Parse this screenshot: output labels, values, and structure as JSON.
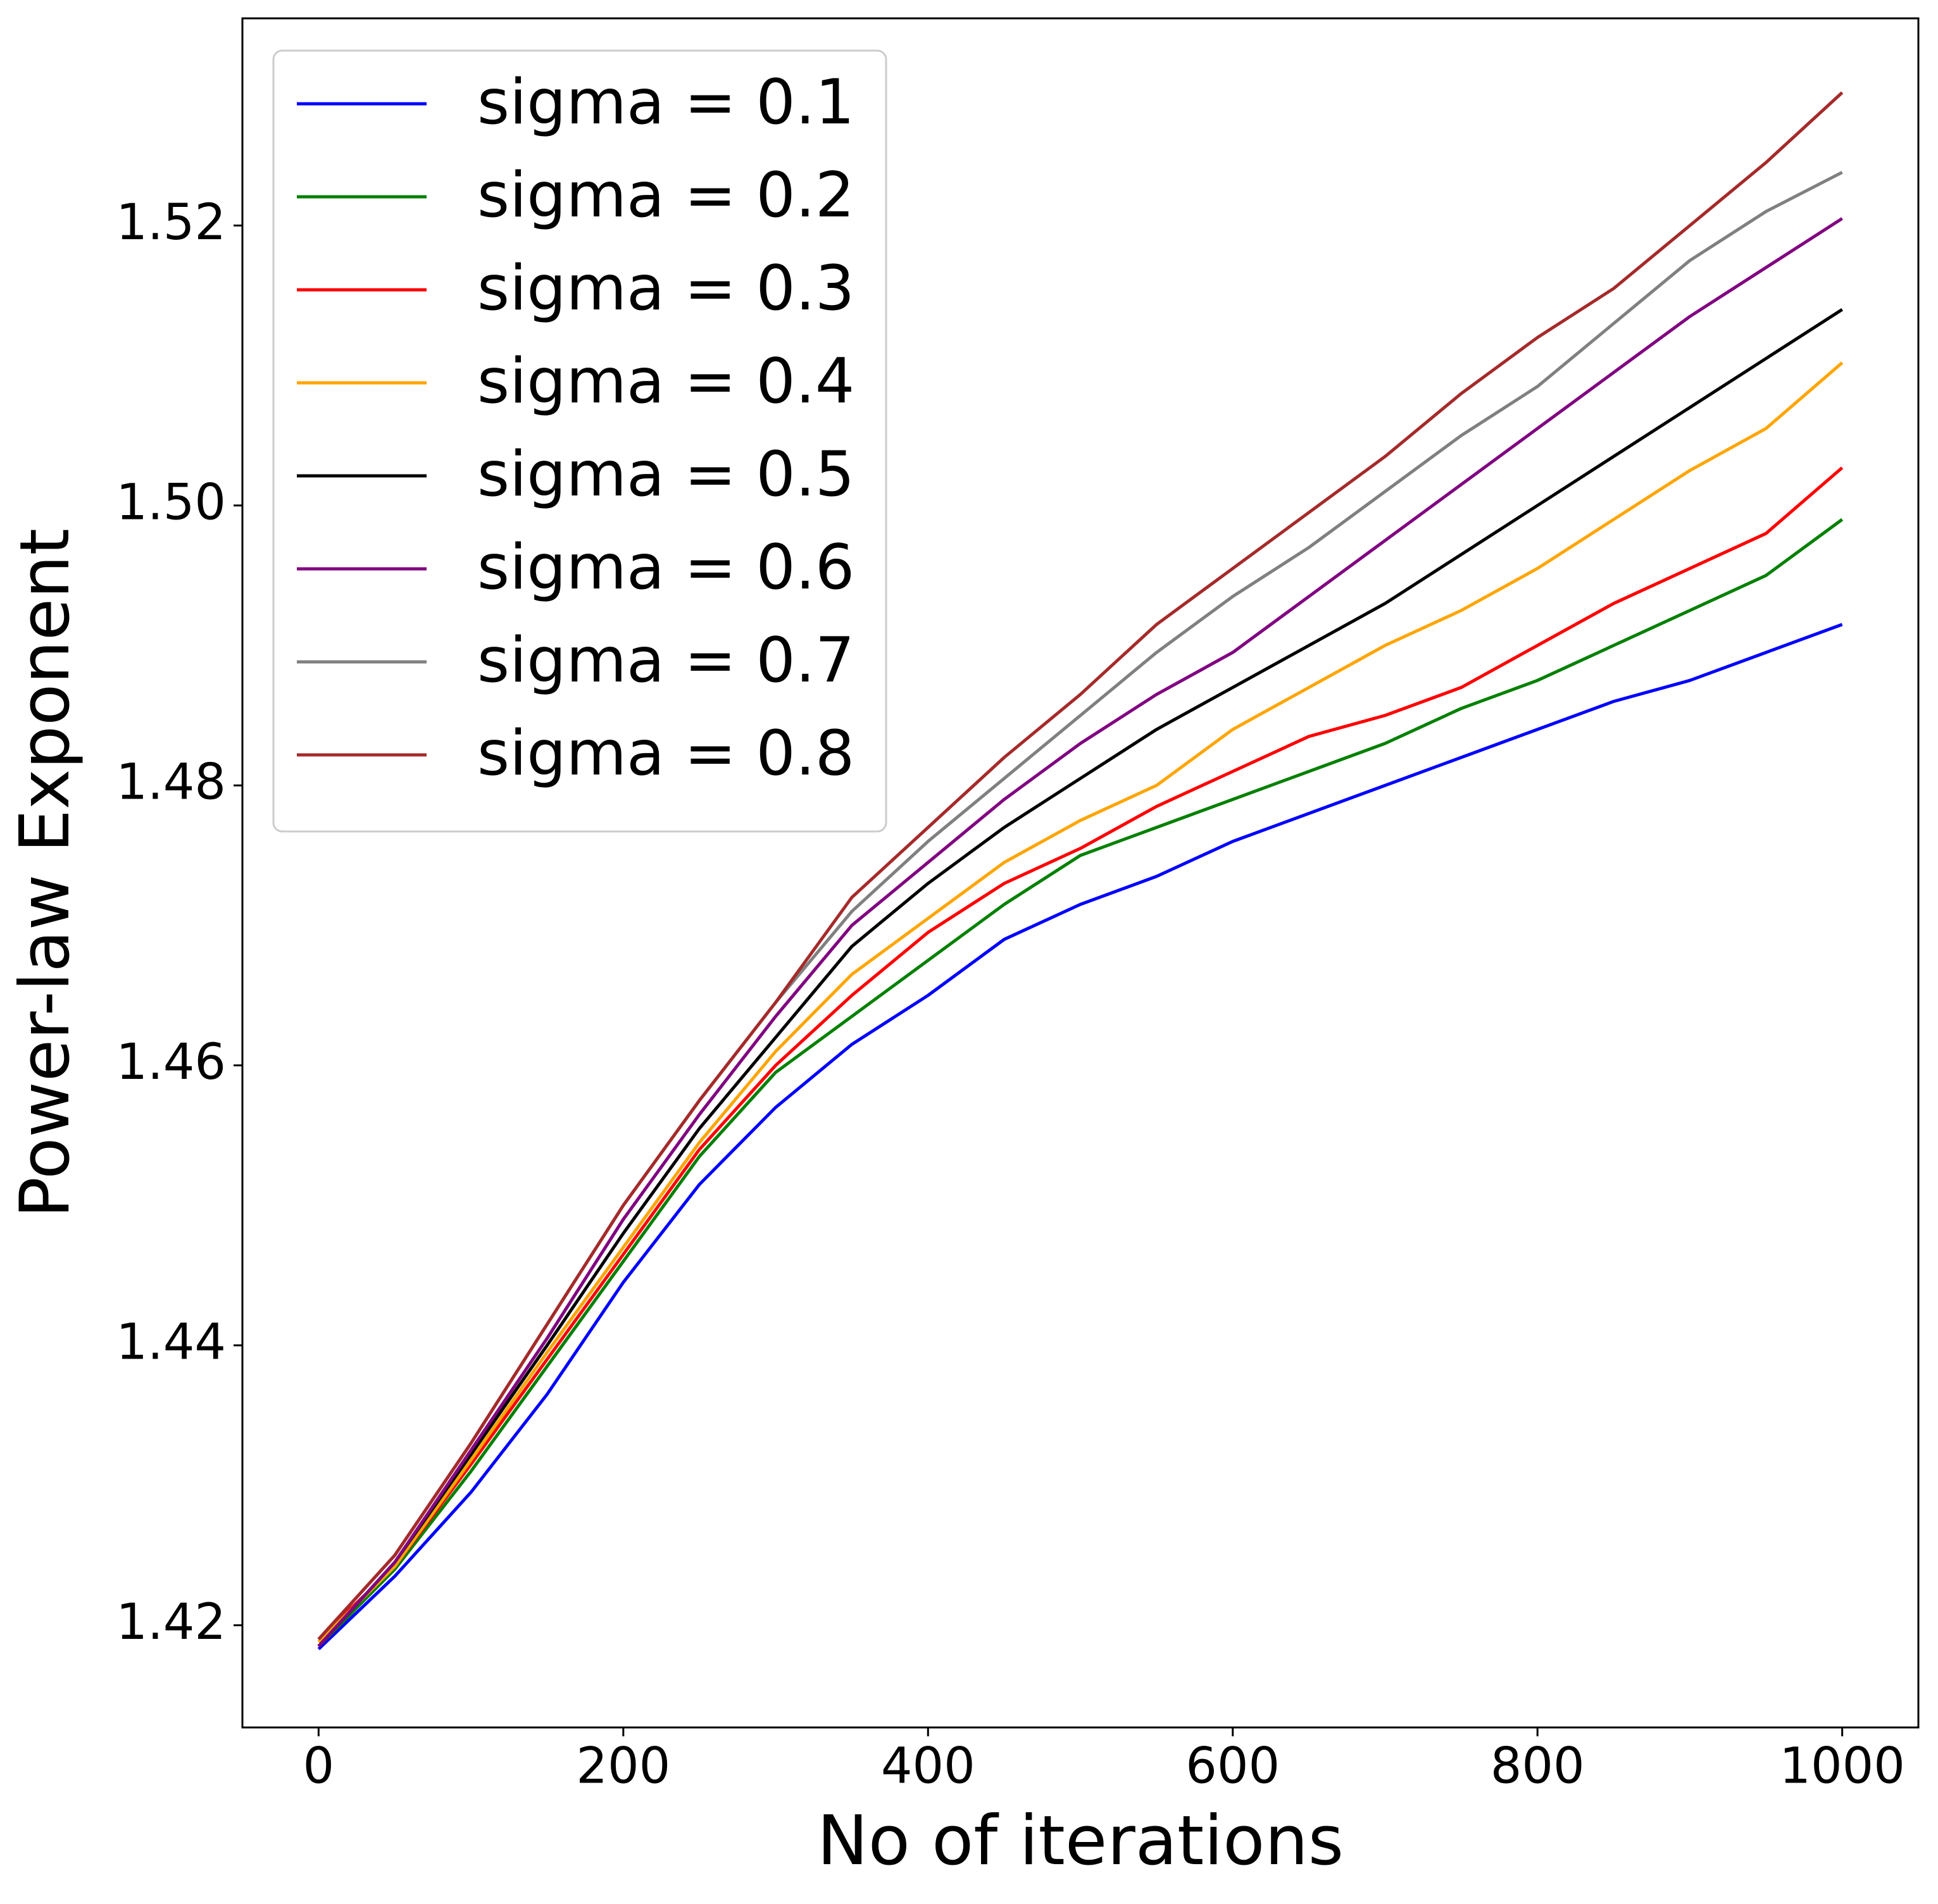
{
  "chart_data": {
    "type": "line",
    "xlabel": "No of iterations",
    "ylabel": "Power-law Exponent",
    "x": [
      0,
      50,
      100,
      150,
      200,
      250,
      300,
      350,
      400,
      450,
      500,
      550,
      600,
      650,
      700,
      750,
      800,
      850,
      900,
      950,
      1000
    ],
    "series": [
      {
        "name": "sigma = 0.1",
        "color": "#0000ff",
        "values": [
          1.4183,
          1.4235,
          1.4295,
          1.4365,
          1.4445,
          1.4515,
          1.457,
          1.4615,
          1.465,
          1.469,
          1.4715,
          1.4735,
          1.476,
          1.478,
          1.48,
          1.482,
          1.484,
          1.486,
          1.4875,
          1.4895,
          1.4915
        ]
      },
      {
        "name": "sigma = 0.2",
        "color": "#008000",
        "values": [
          1.4185,
          1.424,
          1.431,
          1.4385,
          1.446,
          1.4535,
          1.4595,
          1.4635,
          1.4675,
          1.4715,
          1.475,
          1.477,
          1.479,
          1.481,
          1.483,
          1.4855,
          1.4875,
          1.49,
          1.4925,
          1.495,
          1.499
        ]
      },
      {
        "name": "sigma = 0.3",
        "color": "#ff0000",
        "values": [
          1.419,
          1.4242,
          1.4315,
          1.439,
          1.4465,
          1.454,
          1.46,
          1.465,
          1.4695,
          1.473,
          1.4755,
          1.4785,
          1.481,
          1.4835,
          1.485,
          1.487,
          1.49,
          1.493,
          1.4955,
          1.498,
          1.5027
        ]
      },
      {
        "name": "sigma = 0.4",
        "color": "#ffa500",
        "values": [
          1.4188,
          1.4242,
          1.4318,
          1.4395,
          1.447,
          1.4545,
          1.461,
          1.4665,
          1.4705,
          1.4745,
          1.4775,
          1.48,
          1.484,
          1.487,
          1.49,
          1.4925,
          1.4955,
          1.499,
          1.5025,
          1.5055,
          1.5102
        ]
      },
      {
        "name": "sigma = 0.5",
        "color": "#000000",
        "values": [
          1.4185,
          1.4245,
          1.4322,
          1.44,
          1.448,
          1.4555,
          1.462,
          1.4685,
          1.473,
          1.477,
          1.4805,
          1.484,
          1.487,
          1.49,
          1.493,
          1.4965,
          1.5,
          1.5035,
          1.507,
          1.5105,
          1.514
        ]
      },
      {
        "name": "sigma = 0.6",
        "color": "#800080",
        "values": [
          1.4185,
          1.4245,
          1.4325,
          1.4405,
          1.449,
          1.4565,
          1.4635,
          1.47,
          1.4745,
          1.479,
          1.483,
          1.4865,
          1.4895,
          1.4935,
          1.4975,
          1.5015,
          1.5055,
          1.5095,
          1.5135,
          1.517,
          1.5205
        ]
      },
      {
        "name": "sigma = 0.7",
        "color": "#808080",
        "values": [
          1.419,
          1.425,
          1.433,
          1.4415,
          1.45,
          1.4575,
          1.4645,
          1.471,
          1.476,
          1.4805,
          1.485,
          1.4895,
          1.4935,
          1.497,
          1.501,
          1.505,
          1.5085,
          1.513,
          1.5175,
          1.521,
          1.5238
        ]
      },
      {
        "name": "sigma = 0.8",
        "color": "#a52a2a",
        "values": [
          1.419,
          1.425,
          1.433,
          1.4415,
          1.45,
          1.4575,
          1.4645,
          1.472,
          1.477,
          1.482,
          1.4865,
          1.4915,
          1.4955,
          1.4995,
          1.5035,
          1.508,
          1.512,
          1.5155,
          1.52,
          1.5245,
          1.5295
        ]
      }
    ],
    "xlim": [
      -50,
      1050
    ],
    "ylim": [
      1.4127,
      1.5348
    ],
    "xticks": [
      0,
      200,
      400,
      600,
      800,
      1000
    ],
    "yticks": [
      1.42,
      1.44,
      1.46,
      1.48,
      {
        "value": 1.5,
        "label": "1.50"
      },
      1.52
    ],
    "legend": "upper left",
    "grid": false
  }
}
